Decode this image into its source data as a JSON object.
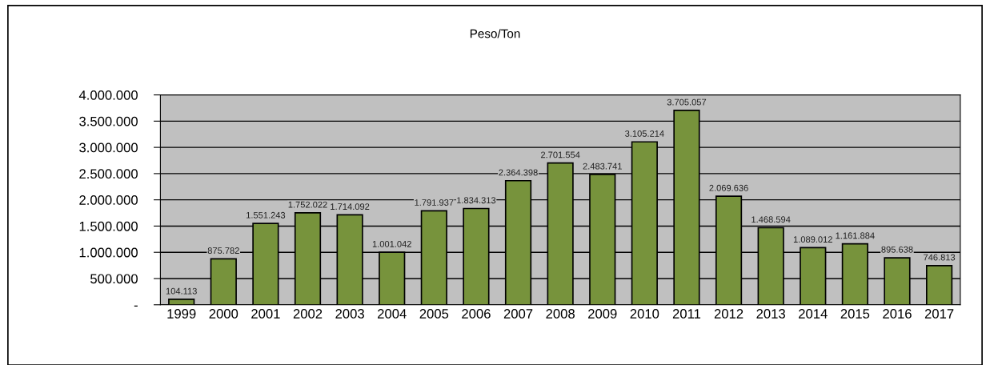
{
  "chart_data": {
    "type": "bar",
    "title": "Peso/Ton",
    "categories": [
      "1999",
      "2000",
      "2001",
      "2002",
      "2003",
      "2004",
      "2005",
      "2006",
      "2007",
      "2008",
      "2009",
      "2010",
      "2011",
      "2012",
      "2013",
      "2014",
      "2015",
      "2016",
      "2017"
    ],
    "values": [
      104113,
      875782,
      1551243,
      1752022,
      1714092,
      1001042,
      1791937,
      1834313,
      2364398,
      2701554,
      2483741,
      3105214,
      3705057,
      2069636,
      1468594,
      1089012,
      1161884,
      895638,
      746813
    ],
    "value_labels": [
      "104.113",
      "875.782",
      "1.551.243",
      "1.752.022",
      "1.714.092",
      "1.001.042",
      "1.791.937",
      "1.834.313",
      "2.364.398",
      "2.701.554",
      "2.483.741",
      "3.105.214",
      "3.705.057",
      "2.069.636",
      "1.468.594",
      "1.089.012",
      "1.161.884",
      "895.638",
      "746.813"
    ],
    "color": "#77933c",
    "ylim": [
      0,
      4000000
    ],
    "yticks": [
      {
        "value": 0,
        "label": "-"
      },
      {
        "value": 500000,
        "label": "500.000"
      },
      {
        "value": 1000000,
        "label": "1.000.000"
      },
      {
        "value": 1500000,
        "label": "1.500.000"
      },
      {
        "value": 2000000,
        "label": "2.000.000"
      },
      {
        "value": 2500000,
        "label": "2.500.000"
      },
      {
        "value": 3000000,
        "label": "3.000.000"
      },
      {
        "value": 3500000,
        "label": "3.500.000"
      },
      {
        "value": 4000000,
        "label": "4.000.000"
      }
    ],
    "grid": "y",
    "legend": false
  }
}
